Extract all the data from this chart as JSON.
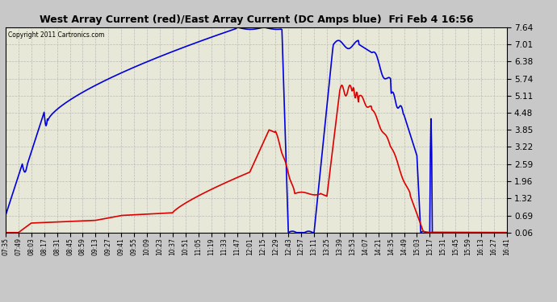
{
  "title": "West Array Current (red)/East Array Current (DC Amps blue)  Fri Feb 4 16:56",
  "copyright": "Copyright 2011 Cartronics.com",
  "yticks": [
    0.06,
    0.69,
    1.32,
    1.96,
    2.59,
    3.22,
    3.85,
    4.48,
    5.11,
    5.74,
    6.38,
    7.01,
    7.64
  ],
  "ylim": [
    0.06,
    7.64
  ],
  "xtick_labels": [
    "07:35",
    "07:49",
    "08:03",
    "08:17",
    "08:31",
    "08:45",
    "08:59",
    "09:13",
    "09:27",
    "09:41",
    "09:55",
    "10:09",
    "10:23",
    "10:37",
    "10:51",
    "11:05",
    "11:19",
    "11:33",
    "11:47",
    "12:01",
    "12:15",
    "12:29",
    "12:43",
    "12:57",
    "13:11",
    "13:25",
    "13:39",
    "13:53",
    "14:07",
    "14:21",
    "14:35",
    "14:49",
    "15:03",
    "15:17",
    "15:31",
    "15:45",
    "15:59",
    "16:13",
    "16:27",
    "16:41"
  ],
  "background_color": "#f0f0e8",
  "grid_color": "#bbbbbb",
  "blue_color": "#0000dd",
  "red_color": "#dd0000",
  "title_bg": "#c8c8c8",
  "plot_bg": "#e8e8d8"
}
